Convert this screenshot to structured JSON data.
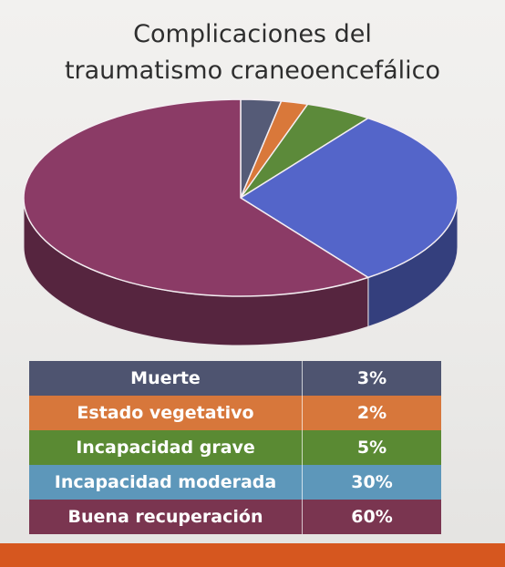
{
  "title_line1": "Complicaciones del",
  "title_line2": "traumatismo craneoencefálico",
  "chart_data": {
    "type": "pie",
    "title": "Complicaciones del traumatismo craneoencefálico",
    "categories": [
      "Muerte",
      "Estado vegetativo",
      "Incapacidad grave",
      "Incapacidad moderada",
      "Buena recuperación"
    ],
    "values": [
      3,
      2,
      5,
      30,
      60
    ],
    "value_labels": [
      "3%",
      "2%",
      "5%",
      "30%",
      "60%"
    ],
    "colors": [
      "#555b77",
      "#d9783a",
      "#5c8a3a",
      "#5465c9",
      "#8b3b66"
    ],
    "legend_colors": [
      "#4e5470",
      "#d7773b",
      "#5a8a33",
      "#5d97ba",
      "#7a3550"
    ],
    "style": "3d",
    "legend": "table-below"
  },
  "accent_bar_color": "#d6571f"
}
